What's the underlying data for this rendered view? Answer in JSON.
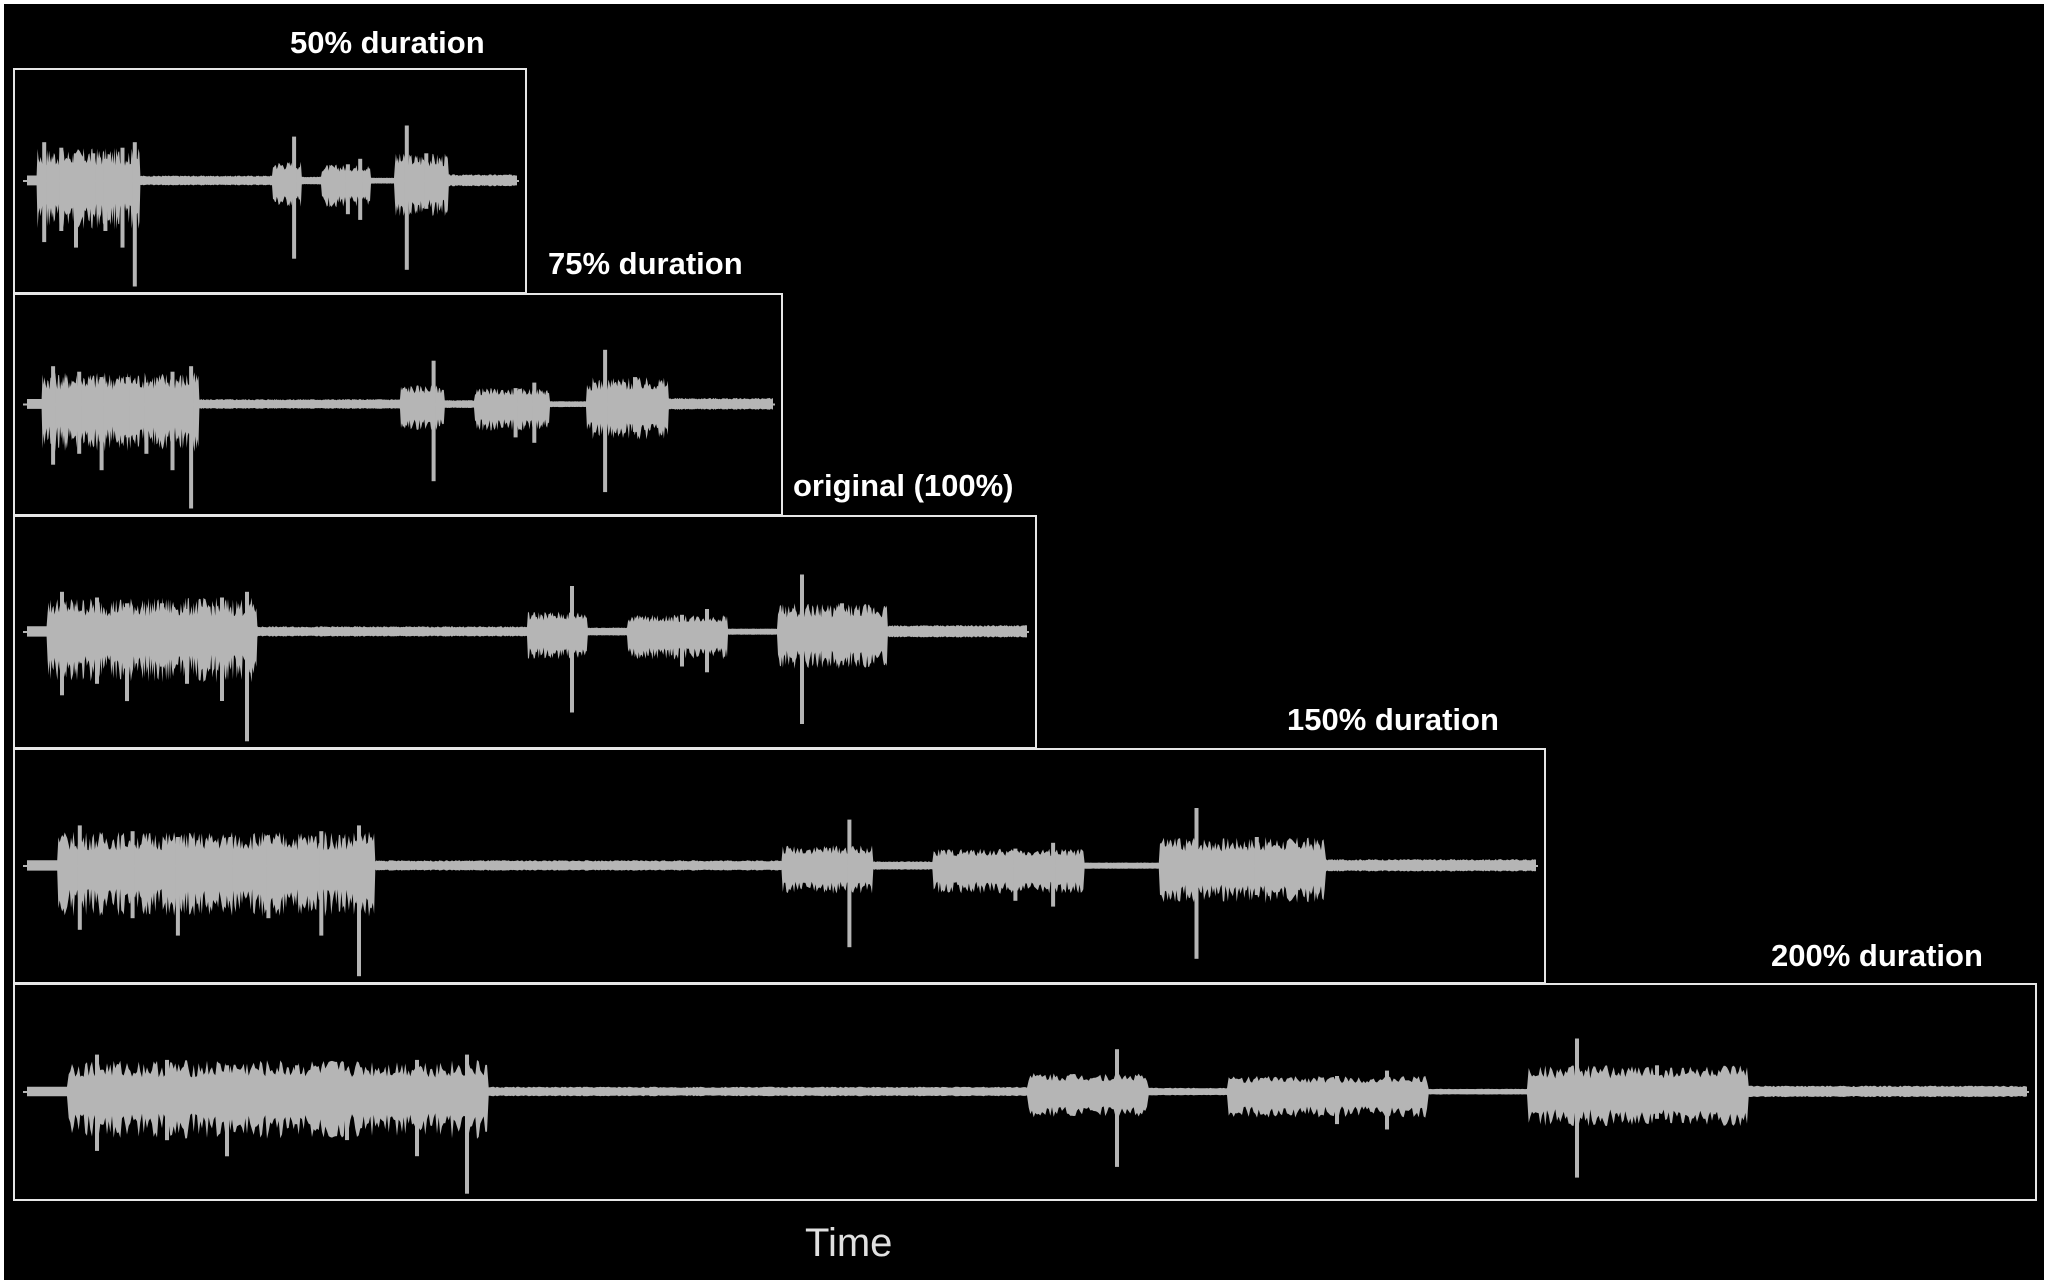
{
  "figure": {
    "axis_label": "Time",
    "waveform_color": "#b5b5b5",
    "frame_color": "#e6e6e6",
    "background_color": "#000000"
  },
  "panels": [
    {
      "id": "p50",
      "label": "50% duration",
      "duration_pct": 50
    },
    {
      "id": "p75",
      "label": "75% duration",
      "duration_pct": 75
    },
    {
      "id": "p100",
      "label": "original (100%)",
      "duration_pct": 100
    },
    {
      "id": "p150",
      "label": "150% duration",
      "duration_pct": 150
    },
    {
      "id": "p200",
      "label": "200% duration",
      "duration_pct": 200
    }
  ]
}
